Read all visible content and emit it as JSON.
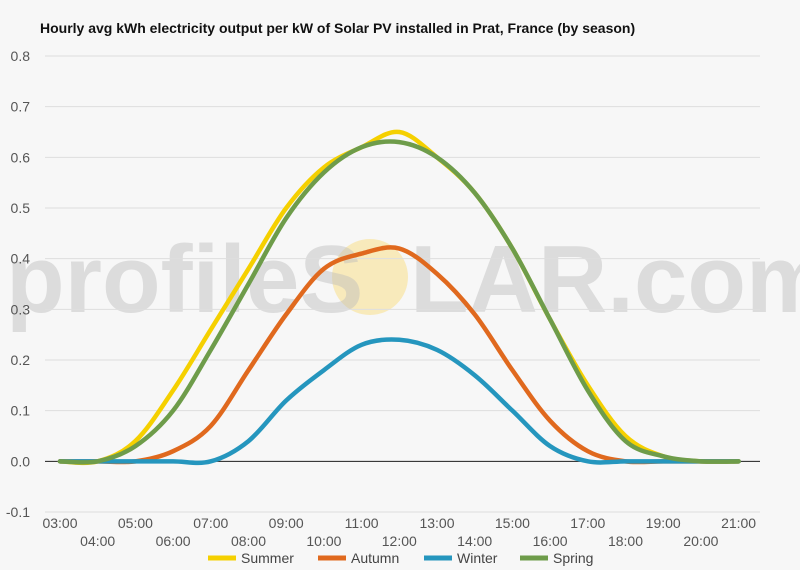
{
  "watermark": {
    "prefix": "profileS",
    "suffix": "LAR.com"
  },
  "chart_data": {
    "type": "line",
    "title": "Hourly avg kWh electricity output per kW of Solar PV installed in Prat, France (by season)",
    "xlabel": "",
    "ylabel": "",
    "ylim": [
      -0.1,
      0.8
    ],
    "yticks": [
      "-0.1",
      "0.0",
      "0.1",
      "0.2",
      "0.3",
      "0.4",
      "0.5",
      "0.6",
      "0.7",
      "0.8"
    ],
    "x": [
      "03:00",
      "04:00",
      "05:00",
      "06:00",
      "07:00",
      "08:00",
      "09:00",
      "10:00",
      "11:00",
      "12:00",
      "13:00",
      "14:00",
      "15:00",
      "16:00",
      "17:00",
      "18:00",
      "19:00",
      "20:00",
      "21:00"
    ],
    "grid": true,
    "legend": "bottom",
    "series": [
      {
        "name": "Summer",
        "color": "#f5d000",
        "values": [
          0.0,
          0.0,
          0.04,
          0.14,
          0.26,
          0.38,
          0.5,
          0.58,
          0.62,
          0.65,
          0.6,
          0.53,
          0.42,
          0.28,
          0.15,
          0.05,
          0.01,
          0.0,
          0.0
        ]
      },
      {
        "name": "Autumn",
        "color": "#e0691e",
        "values": [
          0.0,
          0.0,
          0.0,
          0.02,
          0.07,
          0.18,
          0.29,
          0.38,
          0.41,
          0.42,
          0.37,
          0.29,
          0.18,
          0.08,
          0.02,
          0.0,
          0.0,
          0.0,
          0.0
        ]
      },
      {
        "name": "Winter",
        "color": "#2596be",
        "values": [
          0.0,
          0.0,
          0.0,
          0.0,
          0.0,
          0.04,
          0.12,
          0.18,
          0.23,
          0.24,
          0.22,
          0.17,
          0.1,
          0.03,
          0.0,
          0.0,
          0.0,
          0.0,
          0.0
        ]
      },
      {
        "name": "Spring",
        "color": "#6e9c4a",
        "values": [
          0.0,
          0.0,
          0.03,
          0.1,
          0.22,
          0.35,
          0.48,
          0.57,
          0.62,
          0.63,
          0.6,
          0.53,
          0.42,
          0.28,
          0.14,
          0.04,
          0.01,
          0.0,
          0.0
        ]
      }
    ]
  }
}
